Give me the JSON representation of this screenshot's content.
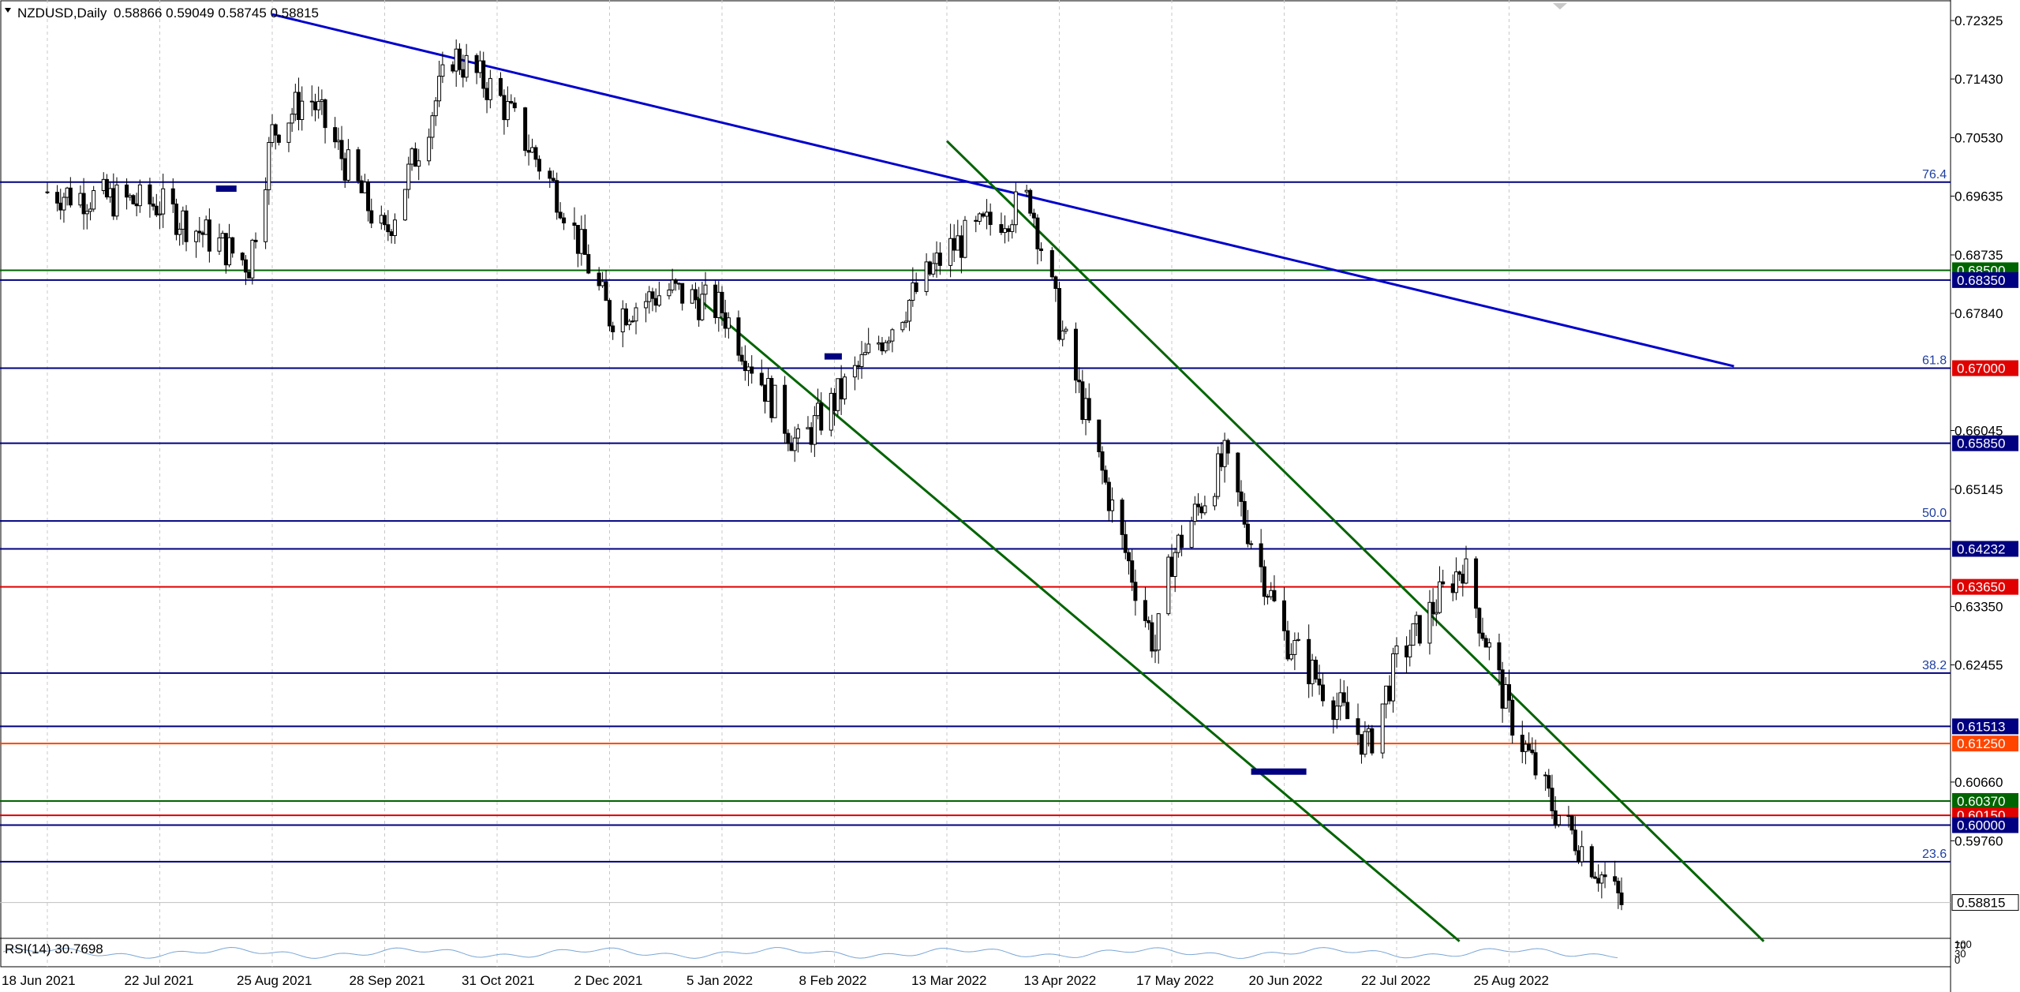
{
  "header": {
    "symbol": "NZDUSD,Daily",
    "ohlc": "0.58866 0.59049 0.58745 0.58815"
  },
  "rsi": {
    "label": "RSI(14) 30.7698",
    "scale_labels": [
      "100",
      "70",
      "30",
      "0"
    ]
  },
  "colors": {
    "background": "#ffffff",
    "grid": "#c8c8c8",
    "candle": "#000000",
    "blue_level": "#000080",
    "trendline_blue": "#0000cc",
    "channel_green": "#006400",
    "red_level": "#e00000",
    "orange_level": "#ff4500",
    "green_level": "#006400",
    "rsi_line": "#7aa6d6"
  },
  "chart_data": {
    "type": "candlestick",
    "symbol": "NZDUSD",
    "timeframe": "Daily",
    "x_labels": [
      "18 Jun 2021",
      "22 Jul 2021",
      "25 Aug 2021",
      "28 Sep 2021",
      "31 Oct 2021",
      "2 Dec 2021",
      "5 Jan 2022",
      "8 Feb 2022",
      "13 Mar 2022",
      "13 Apr 2022",
      "17 May 2022",
      "20 Jun 2022",
      "22 Jul 2022",
      "25 Aug 2022"
    ],
    "y_tick_labels": [
      "0.72325",
      "0.71430",
      "0.70530",
      "0.69635",
      "0.68735",
      "0.67840",
      "0.66045",
      "0.65145",
      "0.63350",
      "0.62455",
      "0.60660",
      "0.59760"
    ],
    "ylim": [
      0.5829,
      0.7264
    ],
    "last_price": "0.58815",
    "price_path": [
      {
        "x": "18 Jun 2021",
        "y": 0.697
      },
      {
        "x": "22 Jul 2021",
        "y": 0.695
      },
      {
        "x": "18 Aug 2021",
        "y": 0.686
      },
      {
        "x": "25 Aug 2021",
        "y": 0.706
      },
      {
        "x": "5 Sep 2021",
        "y": 0.712
      },
      {
        "x": "28 Sep 2021",
        "y": 0.69
      },
      {
        "x": "18 Oct 2021",
        "y": 0.718
      },
      {
        "x": "31 Oct 2021",
        "y": 0.712
      },
      {
        "x": "18 Nov 2021",
        "y": 0.696
      },
      {
        "x": "2 Dec 2021",
        "y": 0.678
      },
      {
        "x": "20 Dec 2021",
        "y": 0.682
      },
      {
        "x": "5 Jan 2022",
        "y": 0.679
      },
      {
        "x": "28 Jan 2022",
        "y": 0.658
      },
      {
        "x": "8 Feb 2022",
        "y": 0.665
      },
      {
        "x": "13 Mar 2022",
        "y": 0.688
      },
      {
        "x": "5 Apr 2022",
        "y": 0.696
      },
      {
        "x": "13 Apr 2022",
        "y": 0.677
      },
      {
        "x": "1 May 2022",
        "y": 0.645
      },
      {
        "x": "12 May 2022",
        "y": 0.627
      },
      {
        "x": "17 May 2022",
        "y": 0.641
      },
      {
        "x": "2 Jun 2022",
        "y": 0.656
      },
      {
        "x": "20 Jun 2022",
        "y": 0.629
      },
      {
        "x": "14 Jul 2022",
        "y": 0.612
      },
      {
        "x": "22 Jul 2022",
        "y": 0.625
      },
      {
        "x": "11 Aug 2022",
        "y": 0.64
      },
      {
        "x": "25 Aug 2022",
        "y": 0.617
      },
      {
        "x": "7 Sep 2022",
        "y": 0.603
      },
      {
        "x": "28 Sep 2022",
        "y": 0.588
      }
    ],
    "horizontal_levels": [
      {
        "value": 0.685,
        "label": "0.68500",
        "color": "#006400"
      },
      {
        "value": 0.6835,
        "label": "0.68350",
        "color": "#000080"
      },
      {
        "value": 0.67,
        "label": "0.67000",
        "color": "#e00000"
      },
      {
        "value": 0.6585,
        "label": "0.65850",
        "color": "#000080"
      },
      {
        "value": 0.64232,
        "label": "0.64232",
        "color": "#000080"
      },
      {
        "value": 0.6365,
        "label": "0.63650",
        "color": "#e00000"
      },
      {
        "value": 0.61513,
        "label": "0.61513",
        "color": "#000080"
      },
      {
        "value": 0.6125,
        "label": "0.61250",
        "color": "#ff4500"
      },
      {
        "value": 0.6037,
        "label": "0.60370",
        "color": "#006400"
      },
      {
        "value": 0.6015,
        "label": "0.60150",
        "color": "#e00000"
      },
      {
        "value": 0.6,
        "label": "0.60000",
        "color": "#000080"
      }
    ],
    "fibonacci_levels": [
      {
        "label": "76.4",
        "value": 0.6985
      },
      {
        "label": "61.8",
        "value": 0.67
      },
      {
        "label": "50.0",
        "value": 0.6466
      },
      {
        "label": "38.2",
        "value": 0.6233
      },
      {
        "label": "23.6",
        "value": 0.5944
      }
    ],
    "trendlines": [
      {
        "color": "#0000cc",
        "from": {
          "x": "25 Aug 2021",
          "y": 0.7242
        },
        "to": {
          "x": "1 Nov 2022",
          "y": 0.6703
        }
      },
      {
        "color": "#006400",
        "from": {
          "x": "13 Mar 2022",
          "y": 0.7048
        },
        "to": {
          "x": "10 Nov 2022",
          "y": 0.5822
        }
      },
      {
        "color": "#006400",
        "from": {
          "x": "28 Dec 2021",
          "y": 0.681
        },
        "to": {
          "x": "10 Aug 2022",
          "y": 0.5822
        }
      }
    ],
    "xlabel": "",
    "ylabel": "",
    "grid": true
  }
}
